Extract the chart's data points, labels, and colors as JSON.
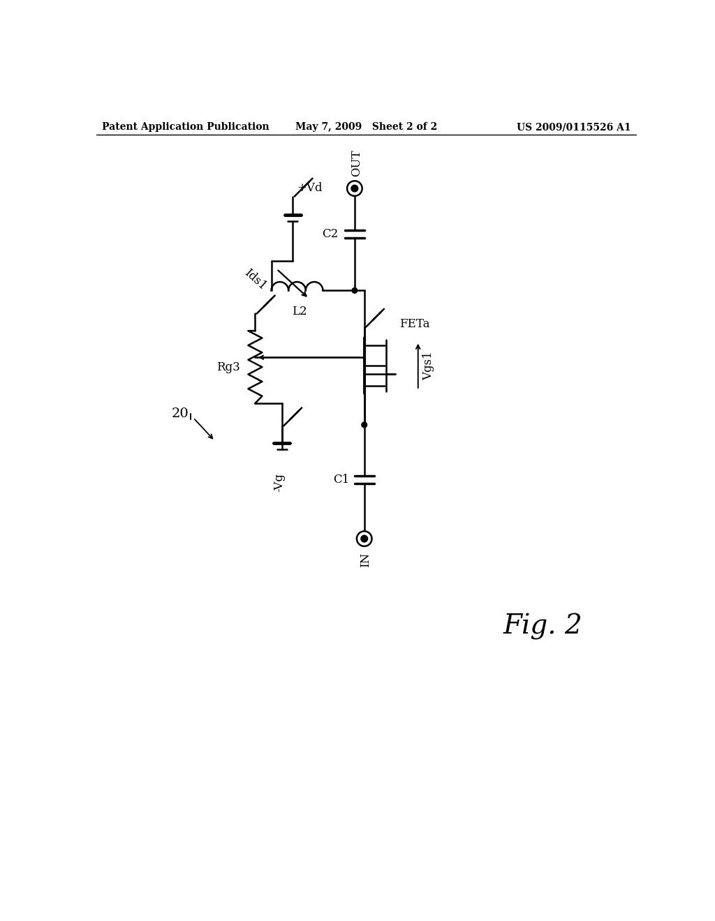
{
  "bg_color": "#ffffff",
  "header_left": "Patent Application Publication",
  "header_mid": "May 7, 2009   Sheet 2 of 2",
  "header_right": "US 2009/0115526 A1",
  "fig_label": "Fig. 2",
  "circuit_label": "20",
  "Vd_label": "+Vd",
  "Ids1_label": "Ids1",
  "L2_label": "L2",
  "C2_label": "C2",
  "OUT_label": "OUT",
  "FETa_label": "FETa",
  "Vgs1_label": "Vgs1",
  "Rg3_label": "Rg3",
  "Vg_label": "-Vg",
  "C1_label": "C1",
  "IN_label": "IN"
}
